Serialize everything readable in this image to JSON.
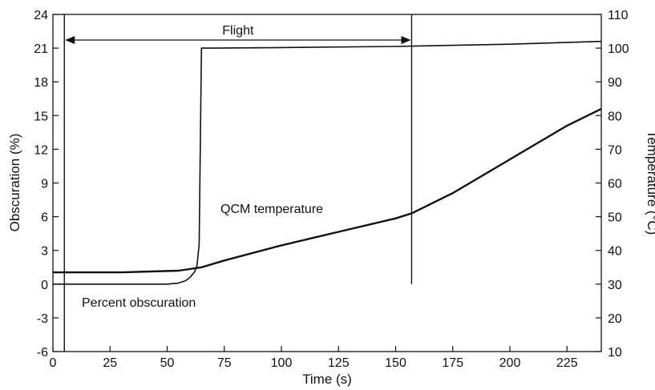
{
  "chart_data": {
    "type": "line",
    "xlabel": "Time (s)",
    "ylabel_left": "Obscuration (%)",
    "ylabel_right": "Temperature (°C)",
    "xlim": [
      0,
      240
    ],
    "ylim_left": [
      -6,
      24
    ],
    "ylim_right": [
      10,
      110
    ],
    "x_ticks": [
      0,
      25,
      50,
      75,
      100,
      125,
      150,
      175,
      200,
      225
    ],
    "y_left_ticks": [
      -6,
      -3,
      0,
      3,
      6,
      9,
      12,
      15,
      18,
      21,
      24
    ],
    "y_right_ticks": [
      10,
      20,
      30,
      40,
      50,
      60,
      70,
      80,
      90,
      100,
      110
    ],
    "grid": false,
    "annotations": {
      "flight_label": "Flight",
      "flight_start": 5,
      "flight_end": 157,
      "qcm_label": "QCM temperature",
      "obscuration_label": "Percent obscuration"
    },
    "series": [
      {
        "name": "Percent obscuration",
        "axis": "left",
        "x": [
          0,
          5,
          10,
          15,
          20,
          25,
          30,
          40,
          50,
          55,
          58,
          60,
          62,
          63,
          64,
          65,
          70,
          100,
          150,
          200,
          240
        ],
        "y": [
          0,
          0,
          0,
          0,
          0,
          0,
          0,
          0,
          0,
          0.1,
          0.3,
          0.6,
          1.1,
          1.6,
          3.5,
          21,
          21,
          21.05,
          21.15,
          21.35,
          21.6
        ]
      },
      {
        "name": "QCM temperature",
        "axis": "right",
        "x": [
          0,
          30,
          55,
          65,
          75,
          100,
          125,
          150,
          157,
          175,
          200,
          225,
          240
        ],
        "y": [
          33.5,
          33.5,
          34,
          35,
          37,
          41.5,
          45.5,
          49.5,
          51,
          57,
          67,
          77,
          82
        ]
      }
    ]
  }
}
